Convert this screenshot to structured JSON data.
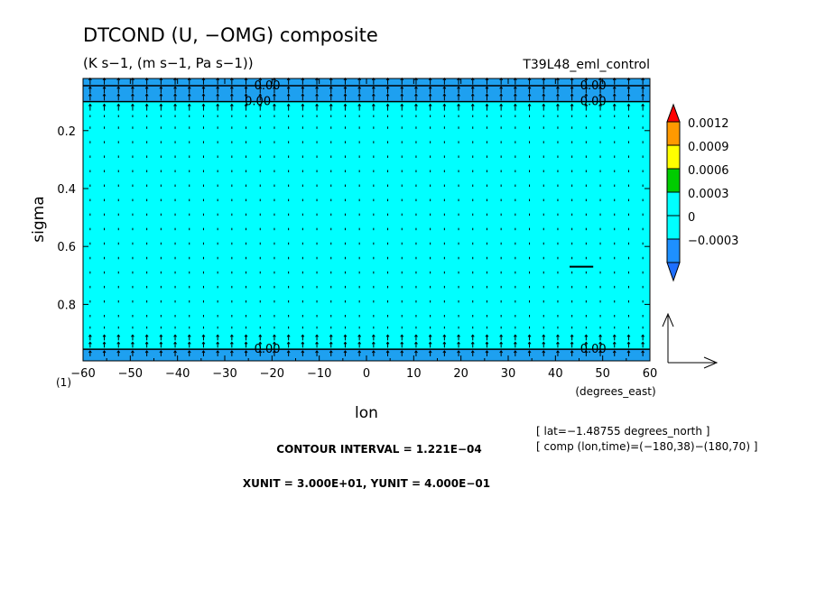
{
  "header": {
    "title": "DTCOND (U, −OMG) composite",
    "units": "(K s−1, (m s−1, Pa s−1))",
    "run": "T39L48_eml_control"
  },
  "chart_data": {
    "type": "heatmap",
    "overlay": "vector",
    "x": {
      "label": "lon",
      "units_label": "(degrees_east)",
      "range": [
        -60,
        60
      ],
      "ticks": [
        -60,
        -50,
        -40,
        -30,
        -20,
        -10,
        0,
        10,
        20,
        30,
        40,
        50,
        60
      ],
      "tick_labels": [
        "−60",
        "−50",
        "−40",
        "−30",
        "−20",
        "−10",
        "0",
        "10",
        "20",
        "30",
        "40",
        "50",
        "60"
      ]
    },
    "y": {
      "label": "sigma",
      "range": [
        0.02,
        0.995
      ],
      "inverted": true,
      "ticks": [
        0.2,
        0.4,
        0.6,
        0.8
      ],
      "tick_labels": [
        "0.2",
        "0.4",
        "0.6",
        "0.8"
      ],
      "bottom_marker": "(1)"
    },
    "bands": [
      {
        "y0": 0.02,
        "y1": 0.045,
        "level": "-0.0003"
      },
      {
        "y0": 0.045,
        "y1": 0.1,
        "level": "-0.0003"
      },
      {
        "y0": 0.1,
        "y1": 0.955,
        "level": "0"
      },
      {
        "y0": 0.955,
        "y1": 0.995,
        "level": "-0.0003"
      }
    ],
    "contour_lines": [
      0.045,
      0.1,
      0.955
    ],
    "contour_labels": [
      {
        "text": "0.00",
        "x": -21,
        "y": 0.045
      },
      {
        "text": "0.00",
        "x": 48,
        "y": 0.045
      },
      {
        "text": "0.00",
        "x": -23,
        "y": 0.1
      },
      {
        "text": "0.00",
        "x": 48,
        "y": 0.1
      },
      {
        "text": "0.00",
        "x": -21,
        "y": 0.955
      },
      {
        "text": "0.00",
        "x": 48,
        "y": 0.955
      }
    ],
    "colorbar": {
      "labels": [
        "0.0012",
        "0.0009",
        "0.0006",
        "0.0003",
        "0",
        "−0.0003"
      ],
      "segments": [
        {
          "color": "#ff0000"
        },
        {
          "color": "#ff9900"
        },
        {
          "color": "#ffff00"
        },
        {
          "color": "#00cc00"
        },
        {
          "color": "#00ffff"
        },
        {
          "color": "#00ffff"
        },
        {
          "color": "#1e90ff"
        },
        {
          "color": "#1e6fff"
        }
      ]
    },
    "band_colors": {
      "-0.0003": "#1ea0f0",
      "0": "#00ffff"
    },
    "vectors": {
      "x_spacing_deg": 3.0,
      "rows": [
        0.03,
        0.06,
        0.085,
        0.12,
        0.15,
        0.19,
        0.24,
        0.29,
        0.34,
        0.39,
        0.44,
        0.49,
        0.54,
        0.59,
        0.64,
        0.69,
        0.74,
        0.79,
        0.84,
        0.88,
        0.915,
        0.94,
        0.97
      ],
      "reference_segment": {
        "x0": 43,
        "x1": 48,
        "y": 0.67
      }
    },
    "reference_vector": {
      "xunit_label": "XUNIT = 3.000E+01",
      "yunit_label": "YUNIT = 4.000E−01"
    }
  },
  "footer": {
    "lat_info": "[ lat=−1.48755 degrees_north ]",
    "comp_info": "[ comp (lon,time)=(−180,38)−(180,70) ]",
    "contour_interval": "CONTOUR INTERVAL = 1.221E−04",
    "units_line": "XUNIT = 3.000E+01, YUNIT = 4.000E−01"
  }
}
